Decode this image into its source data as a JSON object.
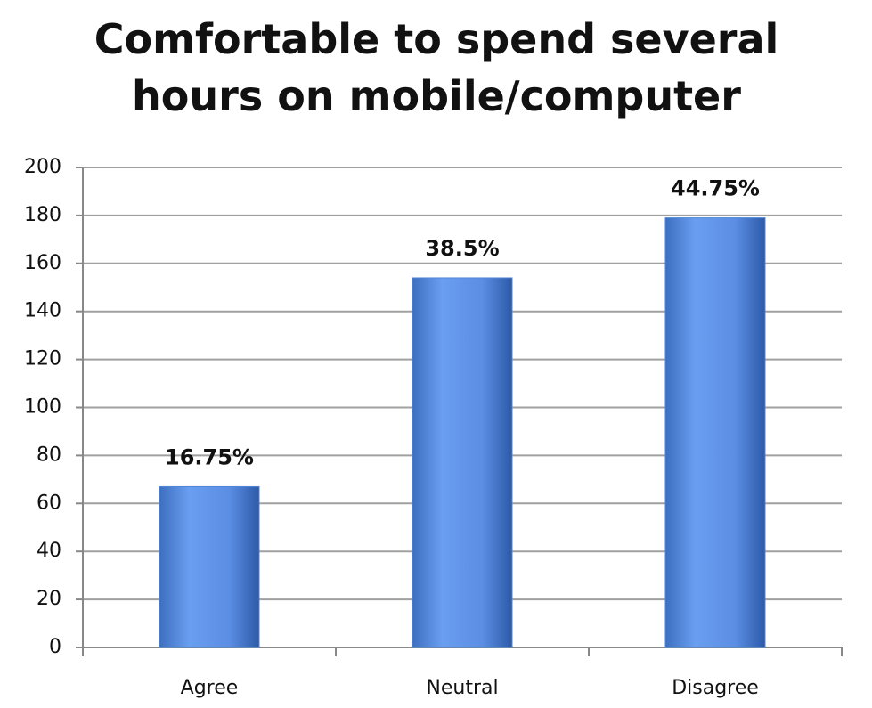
{
  "chart_data": {
    "type": "bar",
    "title": "Comfortable to spend several hours on mobile/computer",
    "categories": [
      "Agree",
      "Neutral",
      "Disagree"
    ],
    "values": [
      67,
      154,
      179
    ],
    "value_labels": [
      "16.75%",
      "38.5%",
      "44.75%"
    ],
    "color": "#4f86d6",
    "ylim": [
      0,
      200
    ],
    "yticks": [
      0,
      20,
      40,
      60,
      80,
      100,
      120,
      140,
      160,
      180,
      200
    ],
    "grid": true
  }
}
